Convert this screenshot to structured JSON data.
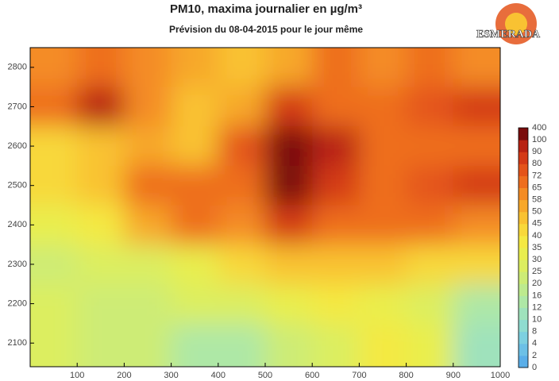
{
  "chart_data": {
    "type": "heatmap",
    "title": "PM10, maxima journalier en µg/m³",
    "subtitle": "Prévision du 08-04-2015 pour le jour même",
    "logo": "ESMERADA",
    "x": [
      50,
      150,
      250,
      350,
      450,
      550,
      650,
      750,
      850,
      950
    ],
    "y": [
      2800,
      2700,
      2600,
      2500,
      2400,
      2300,
      2200,
      2100
    ],
    "z": [
      [
        60,
        70,
        60,
        55,
        45,
        50,
        65,
        60,
        65,
        60
      ],
      [
        65,
        90,
        60,
        45,
        55,
        80,
        70,
        70,
        75,
        85
      ],
      [
        40,
        45,
        50,
        45,
        75,
        110,
        90,
        70,
        70,
        65
      ],
      [
        40,
        45,
        65,
        65,
        65,
        100,
        80,
        70,
        75,
        85
      ],
      [
        30,
        35,
        50,
        65,
        60,
        80,
        65,
        65,
        65,
        60
      ],
      [
        20,
        25,
        25,
        30,
        40,
        45,
        45,
        45,
        40,
        40
      ],
      [
        25,
        20,
        20,
        25,
        25,
        30,
        35,
        30,
        25,
        15
      ],
      [
        25,
        20,
        20,
        15,
        15,
        20,
        25,
        35,
        30,
        10
      ]
    ],
    "xlim": [
      0,
      1000
    ],
    "ylim": [
      2040,
      2850
    ],
    "xticks": [
      100,
      200,
      300,
      400,
      500,
      600,
      700,
      800,
      900,
      1000
    ],
    "yticks": [
      2100,
      2200,
      2300,
      2400,
      2500,
      2600,
      2700,
      2800
    ],
    "colorbar": {
      "levels": [
        0,
        2,
        4,
        8,
        10,
        12,
        16,
        20,
        25,
        30,
        35,
        40,
        45,
        50,
        58,
        65,
        72,
        80,
        90,
        100,
        400
      ],
      "colors": [
        "#5aaee8",
        "#6cc0e6",
        "#7dd0e0",
        "#8fdcd0",
        "#9fe2bc",
        "#aee8a6",
        "#bdea8e",
        "#cdec76",
        "#dcee60",
        "#e9ee4e",
        "#f4e942",
        "#f8d83a",
        "#f9c232",
        "#f7a82b",
        "#f48c25",
        "#ee6e1f",
        "#e4541a",
        "#d43a16",
        "#b82212",
        "#7a0c0c"
      ]
    }
  }
}
